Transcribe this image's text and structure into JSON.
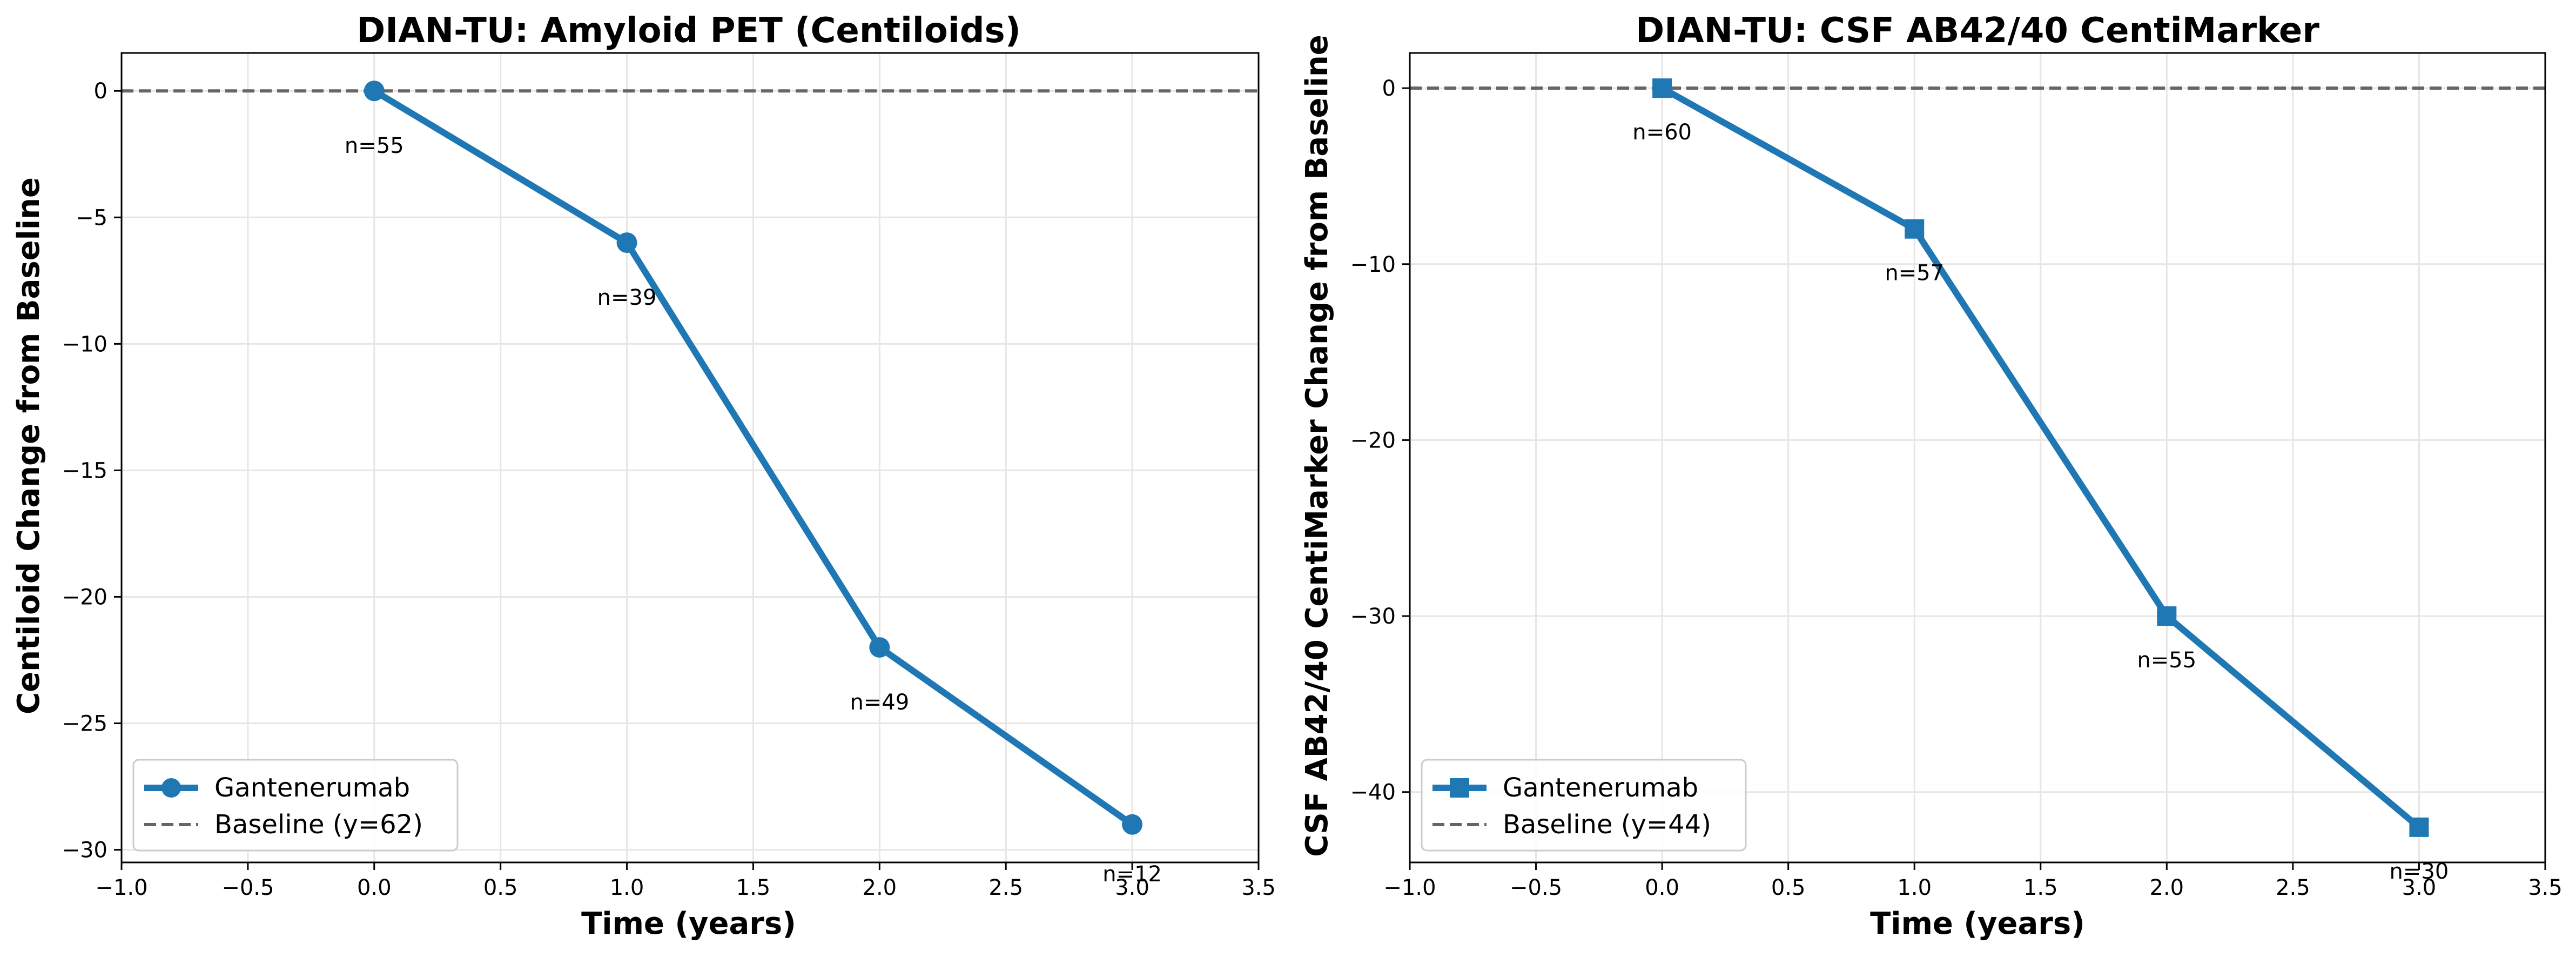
{
  "chart_data": [
    {
      "type": "line",
      "title": "DIAN-TU: Amyloid PET (Centiloids)",
      "xlabel": "Time (years)",
      "ylabel": "Centiloid Change from Baseline",
      "xlim": [
        -1.0,
        3.5
      ],
      "ylim": [
        -30.5,
        1.5
      ],
      "xticks": [
        -1.0,
        -0.5,
        0.0,
        0.5,
        1.0,
        1.5,
        2.0,
        2.5,
        3.0,
        3.5
      ],
      "xtick_labels": [
        "−1.0",
        "−0.5",
        "0.0",
        "0.5",
        "1.0",
        "1.5",
        "2.0",
        "2.5",
        "3.0",
        "3.5"
      ],
      "yticks": [
        0,
        -5,
        -10,
        -15,
        -20,
        -25,
        -30
      ],
      "ytick_labels": [
        "0",
        "−5",
        "−10",
        "−15",
        "−20",
        "−25",
        "−30"
      ],
      "grid": true,
      "legend_position": "lower-left",
      "marker": "circle",
      "series": [
        {
          "name": "Gantenerumab",
          "x": [
            0.0,
            1.0,
            2.0,
            3.0
          ],
          "y": [
            0,
            -6,
            -22,
            -29
          ],
          "point_labels": [
            "n=55",
            "n=39",
            "n=49",
            "n=12"
          ],
          "color": "#1f77b4"
        }
      ],
      "reference_line": {
        "y": 0,
        "name": "Baseline (y=62)",
        "color": "#666666",
        "style": "dashed"
      }
    },
    {
      "type": "line",
      "title": "DIAN-TU: CSF AB42/40 CentiMarker",
      "xlabel": "Time (years)",
      "ylabel": "CSF AB42/40 CentiMarker Change from Baseline",
      "xlim": [
        -1.0,
        3.5
      ],
      "ylim": [
        -44.0,
        2.0
      ],
      "xticks": [
        -1.0,
        -0.5,
        0.0,
        0.5,
        1.0,
        1.5,
        2.0,
        2.5,
        3.0,
        3.5
      ],
      "xtick_labels": [
        "−1.0",
        "−0.5",
        "0.0",
        "0.5",
        "1.0",
        "1.5",
        "2.0",
        "2.5",
        "3.0",
        "3.5"
      ],
      "yticks": [
        0,
        -10,
        -20,
        -30,
        -40
      ],
      "ytick_labels": [
        "0",
        "−10",
        "−20",
        "−30",
        "−40"
      ],
      "grid": true,
      "legend_position": "lower-left",
      "marker": "square",
      "series": [
        {
          "name": "Gantenerumab",
          "x": [
            0.0,
            1.0,
            2.0,
            3.0
          ],
          "y": [
            0,
            -8,
            -30,
            -42
          ],
          "point_labels": [
            "n=60",
            "n=57",
            "n=55",
            "n=30"
          ],
          "color": "#1f77b4"
        }
      ],
      "reference_line": {
        "y": 0,
        "name": "Baseline (y=44)",
        "color": "#666666",
        "style": "dashed"
      }
    }
  ]
}
